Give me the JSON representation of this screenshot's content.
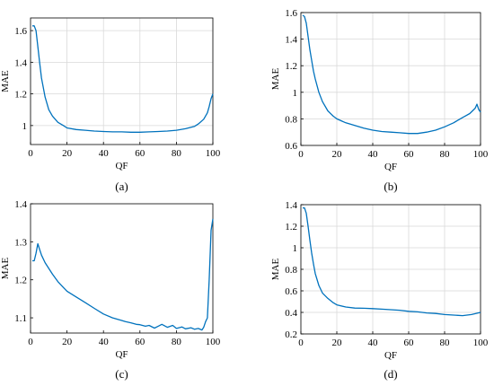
{
  "chart_data": [
    {
      "type": "line",
      "panel_label": "(a)",
      "xlabel": "QF",
      "ylabel": "MAE",
      "xlim": [
        0,
        100
      ],
      "ylim": [
        0.88,
        1.68
      ],
      "xticks": [
        0,
        20,
        40,
        60,
        80,
        100
      ],
      "yticks": [
        1,
        1.2,
        1.4,
        1.6
      ],
      "grid": true,
      "color": "#0072BD",
      "x": [
        1,
        2,
        3,
        4,
        5,
        6,
        7,
        8,
        10,
        12,
        15,
        18,
        20,
        25,
        30,
        35,
        40,
        45,
        50,
        55,
        60,
        65,
        70,
        75,
        80,
        85,
        90,
        92,
        95,
        97,
        98,
        99,
        100
      ],
      "y": [
        1.63,
        1.63,
        1.6,
        1.5,
        1.4,
        1.3,
        1.24,
        1.18,
        1.1,
        1.06,
        1.02,
        1.0,
        0.985,
        0.975,
        0.97,
        0.965,
        0.962,
        0.96,
        0.96,
        0.958,
        0.958,
        0.96,
        0.962,
        0.965,
        0.97,
        0.98,
        0.995,
        1.01,
        1.04,
        1.08,
        1.12,
        1.17,
        1.2
      ]
    },
    {
      "type": "line",
      "panel_label": "(b)",
      "xlabel": "QF",
      "ylabel": "MAE",
      "xlim": [
        0,
        100
      ],
      "ylim": [
        0.6,
        1.6
      ],
      "xticks": [
        0,
        20,
        40,
        60,
        80,
        100
      ],
      "yticks": [
        0.6,
        0.8,
        1,
        1.2,
        1.4,
        1.6
      ],
      "grid": true,
      "color": "#0072BD",
      "x": [
        1,
        2,
        3,
        4,
        5,
        6,
        7,
        8,
        10,
        12,
        15,
        18,
        20,
        25,
        30,
        35,
        40,
        45,
        50,
        55,
        60,
        65,
        70,
        75,
        80,
        85,
        90,
        94,
        97,
        98,
        99,
        100
      ],
      "y": [
        1.58,
        1.57,
        1.52,
        1.42,
        1.32,
        1.24,
        1.16,
        1.1,
        1.0,
        0.93,
        0.86,
        0.82,
        0.8,
        0.77,
        0.75,
        0.73,
        0.715,
        0.705,
        0.7,
        0.695,
        0.69,
        0.69,
        0.7,
        0.715,
        0.74,
        0.77,
        0.81,
        0.84,
        0.88,
        0.91,
        0.87,
        0.85
      ]
    },
    {
      "type": "line",
      "panel_label": "(c)",
      "xlabel": "QF",
      "ylabel": "MAE",
      "xlim": [
        0,
        100
      ],
      "ylim": [
        1.06,
        1.4
      ],
      "xticks": [
        0,
        20,
        40,
        60,
        80,
        100
      ],
      "yticks": [
        1.1,
        1.2,
        1.3,
        1.4
      ],
      "grid": false,
      "color": "#0072BD",
      "x": [
        1,
        2,
        3,
        4,
        5,
        6,
        8,
        10,
        12,
        15,
        18,
        20,
        25,
        30,
        35,
        40,
        45,
        50,
        52,
        55,
        58,
        60,
        63,
        65,
        68,
        70,
        72,
        75,
        78,
        80,
        83,
        85,
        88,
        90,
        92,
        94,
        95,
        96,
        97,
        98,
        99,
        100
      ],
      "y": [
        1.25,
        1.25,
        1.27,
        1.295,
        1.28,
        1.265,
        1.245,
        1.23,
        1.215,
        1.195,
        1.18,
        1.17,
        1.155,
        1.14,
        1.125,
        1.11,
        1.1,
        1.093,
        1.09,
        1.087,
        1.083,
        1.082,
        1.078,
        1.08,
        1.073,
        1.078,
        1.083,
        1.075,
        1.08,
        1.072,
        1.076,
        1.071,
        1.074,
        1.07,
        1.072,
        1.068,
        1.075,
        1.09,
        1.1,
        1.2,
        1.33,
        1.36
      ]
    },
    {
      "type": "line",
      "panel_label": "(d)",
      "xlabel": "QF",
      "ylabel": "MAE",
      "xlim": [
        0,
        100
      ],
      "ylim": [
        0.2,
        1.4
      ],
      "xticks": [
        0,
        20,
        40,
        60,
        80,
        100
      ],
      "yticks": [
        0.2,
        0.4,
        0.6,
        0.8,
        1,
        1.2,
        1.4
      ],
      "grid": true,
      "color": "#0072BD",
      "x": [
        1,
        2,
        3,
        4,
        5,
        6,
        7,
        8,
        10,
        12,
        15,
        18,
        20,
        25,
        30,
        35,
        40,
        45,
        50,
        55,
        60,
        65,
        70,
        75,
        80,
        85,
        90,
        95,
        100
      ],
      "y": [
        1.37,
        1.37,
        1.32,
        1.2,
        1.07,
        0.95,
        0.85,
        0.76,
        0.65,
        0.58,
        0.53,
        0.49,
        0.47,
        0.45,
        0.44,
        0.438,
        0.435,
        0.43,
        0.425,
        0.42,
        0.41,
        0.405,
        0.395,
        0.39,
        0.38,
        0.375,
        0.37,
        0.38,
        0.4
      ]
    }
  ]
}
